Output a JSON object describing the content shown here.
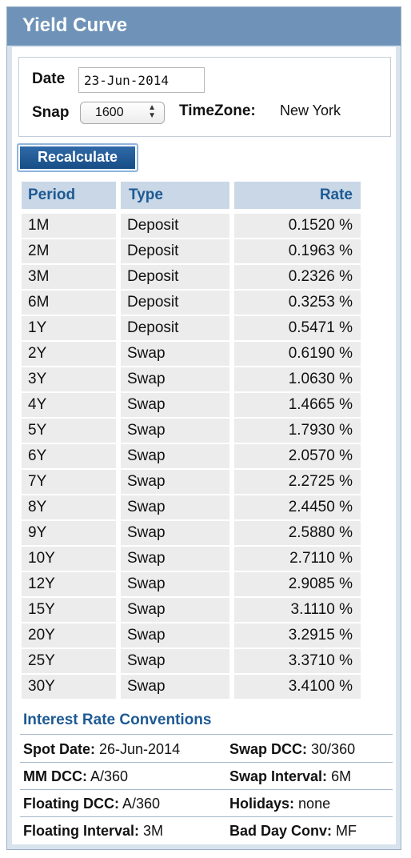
{
  "title": "Yield Curve",
  "form": {
    "date_label": "Date",
    "date_value": "23-Jun-2014",
    "snap_label": "Snap",
    "snap_value": "1600",
    "timezone_label": "TimeZone:",
    "timezone_value": "New York",
    "recalculate_label": "Recalculate"
  },
  "table": {
    "headers": [
      "Period",
      "Type",
      "Rate"
    ],
    "rows": [
      {
        "period": "1M",
        "type": "Deposit",
        "rate": "0.1520 %"
      },
      {
        "period": "2M",
        "type": "Deposit",
        "rate": "0.1963 %"
      },
      {
        "period": "3M",
        "type": "Deposit",
        "rate": "0.2326 %"
      },
      {
        "period": "6M",
        "type": "Deposit",
        "rate": "0.3253 %"
      },
      {
        "period": "1Y",
        "type": "Deposit",
        "rate": "0.5471 %"
      },
      {
        "period": "2Y",
        "type": "Swap",
        "rate": "0.6190 %"
      },
      {
        "period": "3Y",
        "type": "Swap",
        "rate": "1.0630 %"
      },
      {
        "period": "4Y",
        "type": "Swap",
        "rate": "1.4665 %"
      },
      {
        "period": "5Y",
        "type": "Swap",
        "rate": "1.7930 %"
      },
      {
        "period": "6Y",
        "type": "Swap",
        "rate": "2.0570 %"
      },
      {
        "period": "7Y",
        "type": "Swap",
        "rate": "2.2725 %"
      },
      {
        "period": "8Y",
        "type": "Swap",
        "rate": "2.4450 %"
      },
      {
        "period": "9Y",
        "type": "Swap",
        "rate": "2.5880 %"
      },
      {
        "period": "10Y",
        "type": "Swap",
        "rate": "2.7110 %"
      },
      {
        "period": "12Y",
        "type": "Swap",
        "rate": "2.9085 %"
      },
      {
        "period": "15Y",
        "type": "Swap",
        "rate": "3.1110 %"
      },
      {
        "period": "20Y",
        "type": "Swap",
        "rate": "3.2915 %"
      },
      {
        "period": "25Y",
        "type": "Swap",
        "rate": "3.3710 %"
      },
      {
        "period": "30Y",
        "type": "Swap",
        "rate": "3.4100 %"
      }
    ]
  },
  "conventions": {
    "title": "Interest Rate Conventions",
    "spot_date_label": "Spot Date:",
    "spot_date_value": "26-Jun-2014",
    "swap_dcc_label": "Swap DCC:",
    "swap_dcc_value": "30/360",
    "mm_dcc_label": "MM DCC:",
    "mm_dcc_value": "A/360",
    "swap_interval_label": "Swap Interval:",
    "swap_interval_value": "6M",
    "floating_dcc_label": "Floating DCC:",
    "floating_dcc_value": "A/360",
    "holidays_label": "Holidays:",
    "holidays_value": "none",
    "floating_interval_label": "Floating Interval:",
    "floating_interval_value": "3M",
    "bad_day_conv_label": "Bad Day Conv:",
    "bad_day_conv_value": "MF"
  },
  "colors": {
    "header_bg": "#6f93b8",
    "accent_blue": "#1e5a94",
    "table_header_bg": "#c9d7e6",
    "row_bg": "#ececec",
    "button_bg": "#1f5a96"
  }
}
